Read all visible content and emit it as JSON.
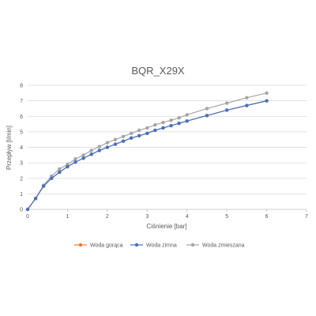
{
  "chart_data": {
    "type": "line",
    "title": "BQR_X29X",
    "xlabel": "Ciśnienie [bar]",
    "ylabel": "Przepływ [l/min]",
    "xlim": [
      0,
      7
    ],
    "ylim": [
      0,
      8
    ],
    "xticks": [
      "0",
      "1",
      "2",
      "3",
      "4",
      "5",
      "6",
      "7"
    ],
    "yticks": [
      "0",
      "1",
      "2",
      "3",
      "4",
      "5",
      "6",
      "7",
      "8"
    ],
    "grid": "horizontal",
    "legend_position": "bottom",
    "series": [
      {
        "name": "Woda gorąca",
        "color": "#ED7D31",
        "x": [
          0,
          0.2,
          0.4,
          0.6,
          0.8,
          1.0,
          1.2,
          1.4,
          1.6,
          1.8,
          2.0,
          2.2,
          2.4,
          2.6,
          2.8,
          3.0,
          3.2,
          3.4,
          3.6,
          3.8,
          4.0,
          4.5,
          5.0,
          5.5,
          6.0
        ],
        "y": [
          0,
          0.7,
          1.5,
          2.0,
          2.4,
          2.75,
          3.05,
          3.3,
          3.55,
          3.8,
          4.0,
          4.2,
          4.4,
          4.6,
          4.75,
          4.9,
          5.1,
          5.25,
          5.4,
          5.55,
          5.7,
          6.05,
          6.4,
          6.7,
          7.0
        ]
      },
      {
        "name": "Woda zimna",
        "color": "#4472C4",
        "x": [
          0,
          0.2,
          0.4,
          0.6,
          0.8,
          1.0,
          1.2,
          1.4,
          1.6,
          1.8,
          2.0,
          2.2,
          2.4,
          2.6,
          2.8,
          3.0,
          3.2,
          3.4,
          3.6,
          3.8,
          4.0,
          4.5,
          5.0,
          5.5,
          6.0
        ],
        "y": [
          0,
          0.7,
          1.5,
          2.0,
          2.4,
          2.75,
          3.05,
          3.3,
          3.55,
          3.8,
          4.0,
          4.2,
          4.4,
          4.6,
          4.75,
          4.9,
          5.1,
          5.25,
          5.4,
          5.55,
          5.7,
          6.05,
          6.4,
          6.7,
          7.0
        ]
      },
      {
        "name": "Woda zmieszana",
        "color": "#A5A5A5",
        "x": [
          0,
          0.2,
          0.4,
          0.6,
          0.8,
          1.0,
          1.2,
          1.4,
          1.6,
          1.8,
          2.0,
          2.2,
          2.4,
          2.6,
          2.8,
          3.0,
          3.2,
          3.4,
          3.6,
          3.8,
          4.0,
          4.5,
          5.0,
          5.5,
          6.0
        ],
        "y": [
          0,
          0.7,
          1.55,
          2.15,
          2.6,
          2.9,
          3.25,
          3.5,
          3.8,
          4.05,
          4.3,
          4.5,
          4.7,
          4.9,
          5.1,
          5.25,
          5.45,
          5.6,
          5.75,
          5.9,
          6.1,
          6.5,
          6.85,
          7.2,
          7.5
        ]
      }
    ]
  }
}
